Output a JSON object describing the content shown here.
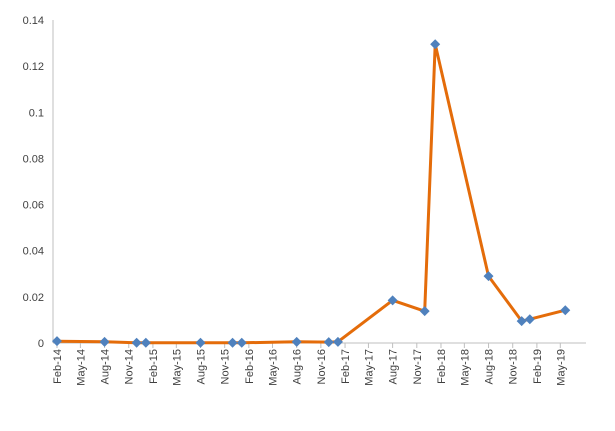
{
  "chart_data": {
    "type": "line",
    "title": "",
    "xlabel": "",
    "ylabel": "",
    "grid": false,
    "legend": "none",
    "ylim": [
      0,
      0.14
    ],
    "xlim": [
      "2014-02-01",
      "2019-07-15"
    ],
    "y_ticks": [
      "0",
      "0.02",
      "0.04",
      "0.06",
      "0.08",
      "0.1",
      "0.12",
      "0.14"
    ],
    "x_ticks": [
      {
        "date": "2014-02-01",
        "label": "Feb-14"
      },
      {
        "date": "2014-05-01",
        "label": "May-14"
      },
      {
        "date": "2014-08-01",
        "label": "Aug-14"
      },
      {
        "date": "2014-11-01",
        "label": "Nov-14"
      },
      {
        "date": "2015-02-01",
        "label": "Feb-15"
      },
      {
        "date": "2015-05-01",
        "label": "May-15"
      },
      {
        "date": "2015-08-01",
        "label": "Aug-15"
      },
      {
        "date": "2015-11-01",
        "label": "Nov-15"
      },
      {
        "date": "2016-02-01",
        "label": "Feb-16"
      },
      {
        "date": "2016-05-01",
        "label": "May-16"
      },
      {
        "date": "2016-08-01",
        "label": "Aug-16"
      },
      {
        "date": "2016-11-01",
        "label": "Nov-16"
      },
      {
        "date": "2017-02-01",
        "label": "Feb-17"
      },
      {
        "date": "2017-05-01",
        "label": "May-17"
      },
      {
        "date": "2017-08-01",
        "label": "Aug-17"
      },
      {
        "date": "2017-11-01",
        "label": "Nov-17"
      },
      {
        "date": "2018-02-01",
        "label": "Feb-18"
      },
      {
        "date": "2018-05-01",
        "label": "May-18"
      },
      {
        "date": "2018-08-01",
        "label": "Aug-18"
      },
      {
        "date": "2018-11-01",
        "label": "Nov-18"
      },
      {
        "date": "2019-02-01",
        "label": "Feb-19"
      },
      {
        "date": "2019-05-01",
        "label": "May-19"
      }
    ],
    "series": [
      {
        "line_color": "#E46C0A",
        "marker_color": "#4F81BD",
        "marker": "diamond",
        "points": [
          {
            "x": "2014-02-01",
            "y": 0.0008
          },
          {
            "x": "2014-08-01",
            "y": 0.0005
          },
          {
            "x": "2014-12-01",
            "y": 0.0001
          },
          {
            "x": "2015-01-05",
            "y": 0.0001
          },
          {
            "x": "2015-08-01",
            "y": 0.0001
          },
          {
            "x": "2015-12-01",
            "y": 0.0001
          },
          {
            "x": "2016-01-05",
            "y": 0.0001
          },
          {
            "x": "2016-08-01",
            "y": 0.0005
          },
          {
            "x": "2016-12-01",
            "y": 0.0004
          },
          {
            "x": "2017-01-05",
            "y": 0.0005
          },
          {
            "x": "2017-08-01",
            "y": 0.0185
          },
          {
            "x": "2017-12-01",
            "y": 0.0138
          },
          {
            "x": "2018-01-10",
            "y": 0.1295
          },
          {
            "x": "2018-08-01",
            "y": 0.029
          },
          {
            "x": "2018-12-05",
            "y": 0.0095
          },
          {
            "x": "2019-01-05",
            "y": 0.0103
          },
          {
            "x": "2019-05-20",
            "y": 0.0142
          }
        ]
      }
    ]
  }
}
